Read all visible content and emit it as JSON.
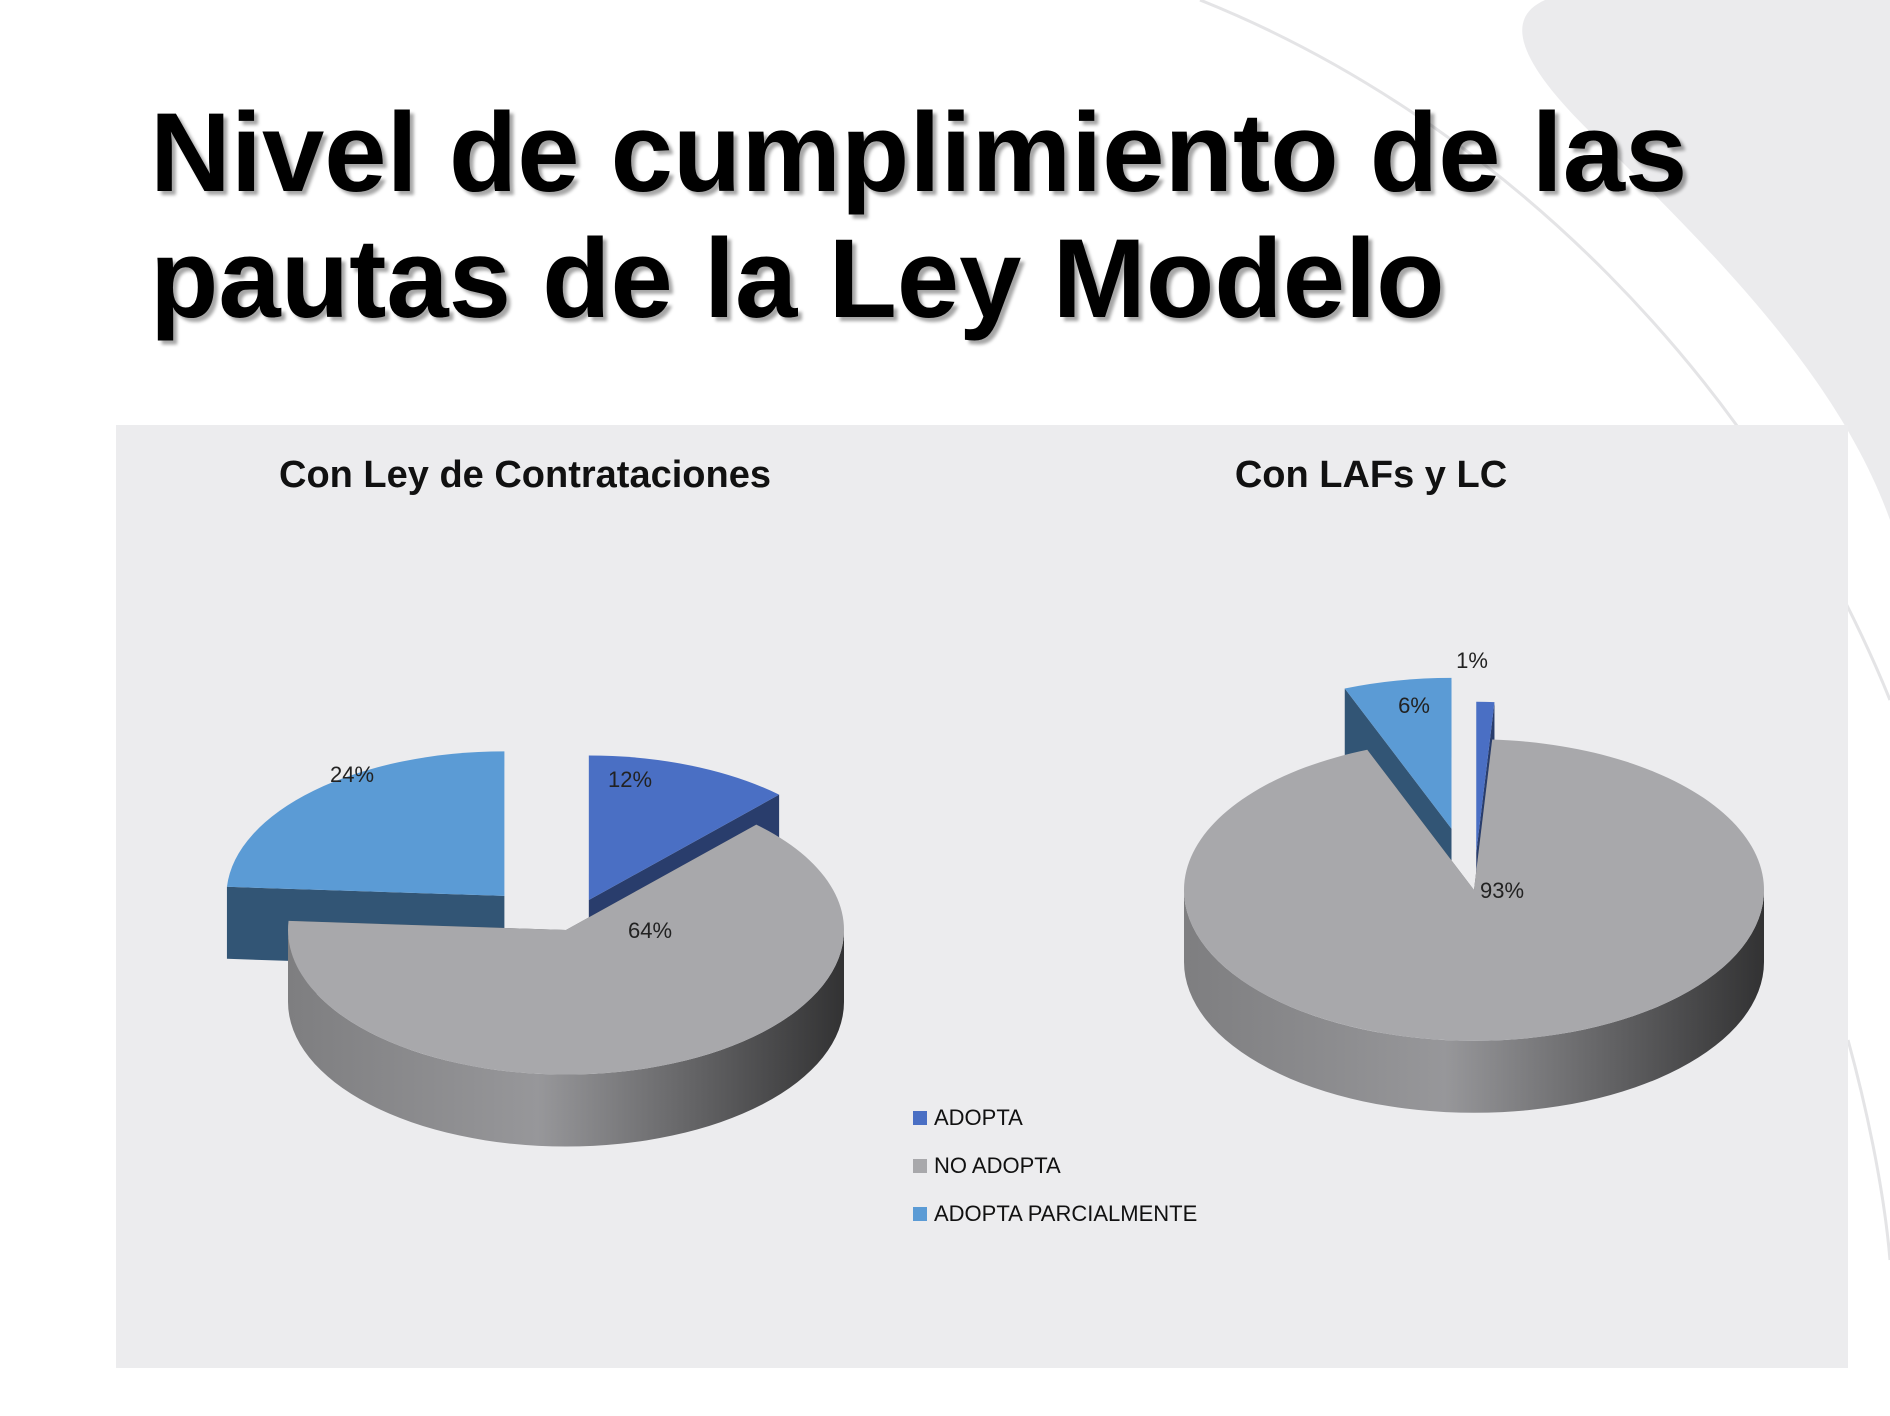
{
  "slide": {
    "title": "Nivel de cumplimiento de las pautas de la Ley Modelo"
  },
  "chart_data": [
    {
      "type": "pie",
      "title": "Con Ley de Contrataciones",
      "categories": [
        "ADOPTA",
        "NO ADOPTA",
        "ADOPTA PARCIALMENTE"
      ],
      "values": [
        12,
        64,
        24
      ],
      "data_labels": [
        "12%",
        "64%",
        "24%"
      ],
      "colors": [
        "#4a6fc4",
        "#a8a8ab",
        "#5b9bd5"
      ],
      "exploded": true,
      "style": "3d"
    },
    {
      "type": "pie",
      "title": "Con LAFs y LC",
      "categories": [
        "ADOPTA",
        "NO ADOPTA",
        "ADOPTA PARCIALMENTE"
      ],
      "values": [
        1,
        93,
        6
      ],
      "data_labels": [
        "1%",
        "93%",
        "6%"
      ],
      "colors": [
        "#4a6fc4",
        "#a8a8ab",
        "#5b9bd5"
      ],
      "exploded": true,
      "style": "3d"
    }
  ],
  "legend": {
    "placement": "bottom-center",
    "items": [
      {
        "label": "ADOPTA",
        "color": "#4a6fc4"
      },
      {
        "label": "NO ADOPTA",
        "color": "#a8a8ab"
      },
      {
        "label": "ADOPTA PARCIALMENTE",
        "color": "#5b9bd5"
      }
    ]
  }
}
